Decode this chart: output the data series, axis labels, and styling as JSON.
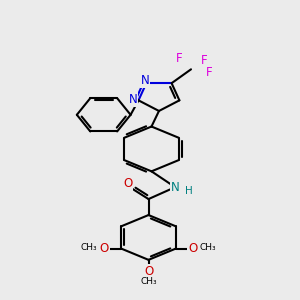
{
  "background_color": "#ebebeb",
  "atom_colors": {
    "C": "#000000",
    "N_blue": "#0000dd",
    "N_teal": "#008080",
    "O": "#cc0000",
    "F": "#dd00dd",
    "H": "#008080"
  },
  "bond_lw": 1.5,
  "font_size_atom": 8.5,
  "font_size_small": 7.0,
  "xlim": [
    0,
    10
  ],
  "ylim": [
    0,
    14
  ],
  "figsize": [
    3.0,
    3.0
  ],
  "dpi": 100
}
